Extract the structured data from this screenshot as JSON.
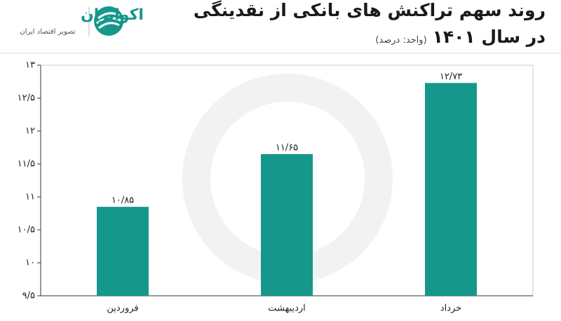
{
  "brand": {
    "name": "اکوایران",
    "tagline": "تصویر اقتصاد ایران"
  },
  "chart_data": {
    "type": "bar",
    "title_lines": [
      "روند سهم تراکنش های بانکی از نقدینگی",
      "در سال ۱۴۰۱"
    ],
    "subtitle": "(واحد: درصد)",
    "categories": [
      "فروردین",
      "اردیبهشت",
      "خرداد"
    ],
    "values": [
      10.85,
      11.65,
      12.73
    ],
    "value_labels": [
      "۱۰/۸۵",
      "۱۱/۶۵",
      "۱۲/۷۳"
    ],
    "color": "#16978c",
    "ylim": [
      9.5,
      13
    ],
    "yticks": [
      {
        "value": 9.5,
        "label": "۹/۵"
      },
      {
        "value": 10,
        "label": "۱۰"
      },
      {
        "value": 10.5,
        "label": "۱۰/۵"
      },
      {
        "value": 11,
        "label": "۱۱"
      },
      {
        "value": 11.5,
        "label": "۱۱/۵"
      },
      {
        "value": 12,
        "label": "۱۲"
      },
      {
        "value": 12.5,
        "label": "۱۲/۵"
      },
      {
        "value": 13,
        "label": "۱۳"
      }
    ],
    "grid": false
  }
}
